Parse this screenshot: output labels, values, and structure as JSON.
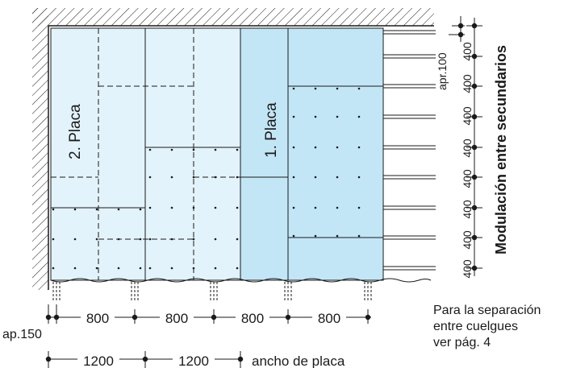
{
  "labels": {
    "second_layer": "2. Placa",
    "first_layer": "1. Placa",
    "vertical_axis": "Modulación entre secundarios",
    "top_spacing": "apr.100",
    "edge_spacing": "ap.150",
    "board_width": "ancho de placa"
  },
  "horizontal_modules": [
    "800",
    "800",
    "800",
    "800"
  ],
  "board_modules": [
    "1200",
    "1200"
  ],
  "vertical_modules": [
    "400",
    "400",
    "400",
    "400",
    "400",
    "400",
    "400",
    "400"
  ],
  "note": {
    "line1": "Para la separación",
    "line2": "entre cuelgues",
    "line3": "ver pág. 4"
  },
  "colors": {
    "layer_second": "#e3f3fb",
    "layer_first": "#c3e6f7",
    "ink": "#1a1a1a"
  }
}
